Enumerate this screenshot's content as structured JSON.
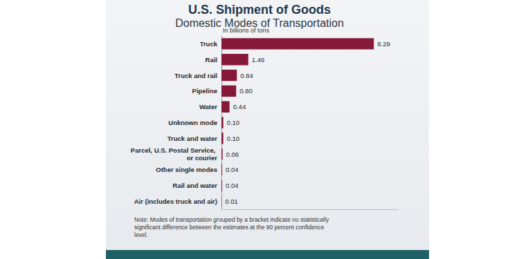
{
  "chart_data": {
    "type": "bar",
    "orientation": "horizontal",
    "title": "U.S. Shipment of Goods",
    "subtitle": "Domestic Modes of Transportation",
    "xlabel": "In billions of tons",
    "categories": [
      "Truck",
      "Rail",
      "Truck and rail",
      "Pipeline",
      "Water",
      "Unknown mode",
      "Truck and water",
      "Parcel, U.S. Postal Service, or courier",
      "Other single modes",
      "Rail and water",
      "Air (includes truck and air)"
    ],
    "values": [
      8.29,
      1.46,
      0.84,
      0.8,
      0.44,
      0.1,
      0.1,
      0.06,
      0.04,
      0.04,
      0.01
    ],
    "value_labels": [
      "8.29",
      "1.46",
      "0.84",
      "0.80",
      "0.44",
      "0.10",
      "0.10",
      "0.06",
      "0.04",
      "0.04",
      "0.01"
    ],
    "color": "#86193a",
    "xlim": [
      0,
      9.6
    ],
    "data_labels": true,
    "grid": false,
    "tick_labels": "y",
    "annotations": [
      "Note: Modes of transportation grouped by a bracket indicate no statistically significant difference between the estimates at the 90 percent confidence level."
    ]
  }
}
